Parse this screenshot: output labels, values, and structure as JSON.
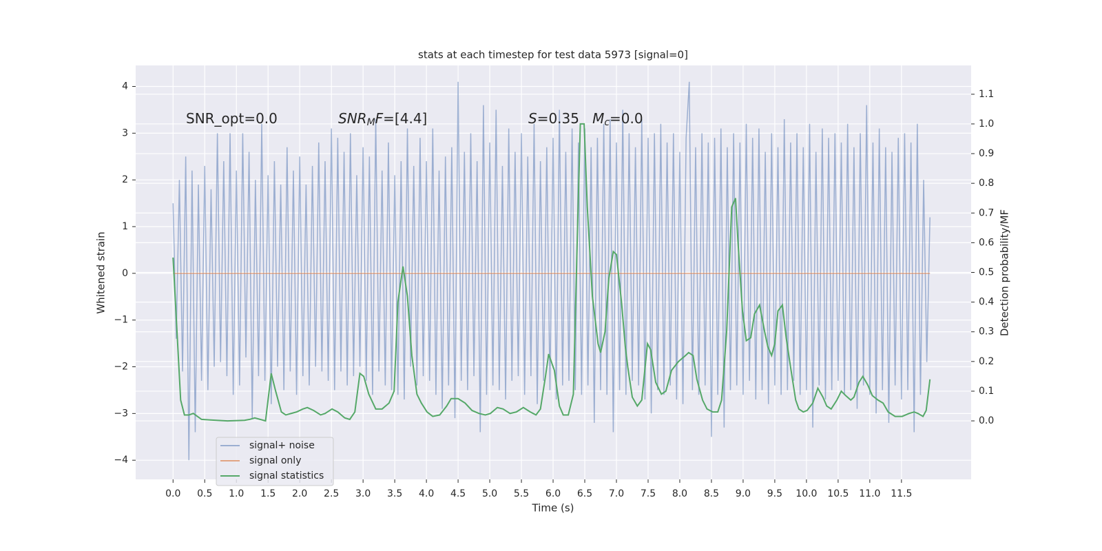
{
  "chart_data": {
    "type": "line",
    "title": "stats at each timestep for test data 5973 [signal=0]",
    "xlabel": "Time (s)",
    "ylabel": "Whitened strain",
    "y2label": "Detection probability/MF",
    "xlim": [
      -0.59,
      12.6
    ],
    "ylim": [
      -4.41,
      4.45
    ],
    "y2lim": [
      -0.197,
      1.197
    ],
    "grid": true,
    "legend": "lower left",
    "xticks": [
      {
        "value": 0,
        "label": "0.0"
      },
      0.5,
      {
        "value": 1,
        "label": "1.0"
      },
      1.5,
      {
        "value": 2,
        "label": "2.0"
      },
      2.5,
      {
        "value": 3,
        "label": "3.0"
      },
      3.5,
      {
        "value": 4,
        "label": "4.0"
      },
      4.5,
      {
        "value": 5,
        "label": "5.0"
      },
      5.5,
      {
        "value": 6,
        "label": "6.0"
      },
      6.5,
      {
        "value": 7,
        "label": "7.0"
      },
      7.5,
      {
        "value": 8,
        "label": "8.0"
      },
      8.5,
      {
        "value": 9,
        "label": "9.0"
      },
      9.5,
      {
        "value": 10,
        "label": "10.0"
      },
      10.5,
      {
        "value": 11,
        "label": "11.0"
      },
      11.5
    ],
    "yticks": [
      {
        "value": -4,
        "label": "−4"
      },
      {
        "value": -3,
        "label": "−3"
      },
      {
        "value": -2,
        "label": "−2"
      },
      {
        "value": -1,
        "label": "−1"
      },
      0,
      1,
      2,
      3,
      4
    ],
    "y2ticks": [
      {
        "value": 0,
        "label": "0.0"
      },
      0.1,
      0.2,
      0.3,
      0.4,
      0.5,
      0.6,
      0.7,
      0.8,
      0.9,
      {
        "value": 1,
        "label": "1.0"
      },
      1.1
    ],
    "annotations": [
      {
        "parts": [
          {
            "text": "SNR_opt=0.0"
          }
        ]
      },
      {
        "parts": [
          {
            "text": "SNR",
            "style": "italic"
          },
          {
            "text": "M",
            "style": "sub"
          },
          {
            "text": "F",
            "style": "italic"
          },
          {
            "text": "=[4.4]"
          }
        ]
      },
      {
        "parts": [
          {
            "text": "S",
            "style": "italic"
          },
          {
            "text": "=0.35   "
          },
          {
            "text": "M",
            "style": "italic"
          },
          {
            "text": "c",
            "style": "sub"
          },
          {
            "text": "=0.0"
          }
        ]
      }
    ],
    "series": [
      {
        "name": "signal+ noise",
        "color": "#4c72b0",
        "opacity": 0.5,
        "x": [
          0,
          0.05,
          0.1,
          0.15,
          0.2,
          0.25,
          0.3,
          0.35,
          0.4,
          0.45,
          0.5,
          0.55,
          0.6,
          0.65,
          0.7,
          0.75,
          0.8,
          0.85,
          0.9,
          0.95,
          1,
          1.05,
          1.1,
          1.15,
          1.2,
          1.25,
          1.3,
          1.35,
          1.4,
          1.45,
          1.5,
          1.55,
          1.6,
          1.65,
          1.7,
          1.75,
          1.8,
          1.85,
          1.9,
          1.95,
          2,
          2.05,
          2.1,
          2.15,
          2.2,
          2.25,
          2.3,
          2.35,
          2.4,
          2.45,
          2.5,
          2.55,
          2.6,
          2.65,
          2.7,
          2.75,
          2.8,
          2.85,
          2.9,
          2.95,
          3,
          3.05,
          3.1,
          3.15,
          3.2,
          3.25,
          3.3,
          3.35,
          3.4,
          3.45,
          3.5,
          3.55,
          3.6,
          3.65,
          3.7,
          3.75,
          3.8,
          3.85,
          3.9,
          3.95,
          4,
          4.05,
          4.1,
          4.15,
          4.2,
          4.25,
          4.3,
          4.35,
          4.4,
          4.45,
          4.5,
          4.55,
          4.6,
          4.65,
          4.7,
          4.75,
          4.8,
          4.85,
          4.9,
          4.95,
          5,
          5.05,
          5.1,
          5.15,
          5.2,
          5.25,
          5.3,
          5.35,
          5.4,
          5.45,
          5.5,
          5.55,
          5.6,
          5.65,
          5.7,
          5.75,
          5.8,
          5.85,
          5.9,
          5.95,
          6,
          6.05,
          6.1,
          6.15,
          6.2,
          6.25,
          6.3,
          6.35,
          6.4,
          6.45,
          6.5,
          6.55,
          6.6,
          6.65,
          6.7,
          6.75,
          6.8,
          6.85,
          6.9,
          6.95,
          7,
          7.05,
          7.1,
          7.15,
          7.2,
          7.25,
          7.3,
          7.35,
          7.4,
          7.45,
          7.5,
          7.55,
          7.6,
          7.65,
          7.7,
          7.75,
          7.8,
          7.85,
          7.9,
          7.95,
          8,
          8.05,
          8.1,
          8.15,
          8.2,
          8.25,
          8.3,
          8.35,
          8.4,
          8.45,
          8.5,
          8.55,
          8.6,
          8.65,
          8.7,
          8.75,
          8.8,
          8.85,
          8.9,
          8.95,
          9,
          9.05,
          9.1,
          9.15,
          9.2,
          9.25,
          9.3,
          9.35,
          9.4,
          9.45,
          9.5,
          9.55,
          9.6,
          9.65,
          9.7,
          9.75,
          9.8,
          9.85,
          9.9,
          9.95,
          10,
          10.05,
          10.1,
          10.15,
          10.2,
          10.25,
          10.3,
          10.35,
          10.4,
          10.45,
          10.5,
          10.55,
          10.6,
          10.65,
          10.7,
          10.75,
          10.8,
          10.85,
          10.9,
          10.95,
          11,
          11.05,
          11.1,
          11.15,
          11.2,
          11.25,
          11.3,
          11.35,
          11.4,
          11.45,
          11.5,
          11.55,
          11.6,
          11.65,
          11.7,
          11.75,
          11.8,
          11.85,
          11.9,
          11.95
        ],
        "values": [
          1.5,
          -1.4,
          2.0,
          -2.1,
          2.5,
          -4.0,
          2.2,
          -3.4,
          1.9,
          -2.3,
          2.3,
          -2.5,
          1.8,
          -2.0,
          3.0,
          -1.9,
          2.4,
          -2.2,
          3.0,
          -2.6,
          2.2,
          -2.4,
          3.0,
          -1.8,
          2.6,
          -3.1,
          2.0,
          -2.2,
          3.2,
          -2.3,
          2.1,
          -2.8,
          2.4,
          -2.0,
          1.9,
          -2.5,
          2.7,
          -2.1,
          2.2,
          -2.6,
          2.5,
          -2.2,
          1.9,
          -2.4,
          2.3,
          -2.0,
          2.8,
          -2.1,
          2.4,
          -2.3,
          3.1,
          -2.5,
          2.9,
          -2.1,
          2.6,
          -2.4,
          3.0,
          -2.2,
          2.1,
          -2.0,
          2.7,
          -2.3,
          2.5,
          -2.6,
          3.3,
          -2.1,
          2.2,
          -2.4,
          2.8,
          -2.5,
          2.1,
          -2.6,
          2.4,
          -2.7,
          3.1,
          -2.0,
          2.3,
          -2.4,
          2.9,
          -2.2,
          2.4,
          -2.3,
          3.1,
          -2.6,
          2.2,
          -2.9,
          2.5,
          -2.4,
          2.7,
          -3.1,
          4.1,
          -2.3,
          2.6,
          -2.5,
          3.0,
          -2.2,
          2.4,
          -3.4,
          3.6,
          -2.6,
          2.8,
          -2.4,
          3.5,
          -2.5,
          2.3,
          -2.7,
          3.1,
          -2.3,
          2.6,
          -2.2,
          3.0,
          -2.6,
          2.5,
          -2.2,
          3.2,
          -2.8,
          2.4,
          -2.3,
          2.7,
          -2.5,
          2.9,
          -2.7,
          3.5,
          -2.4,
          2.6,
          -2.3,
          3.1,
          -2.5,
          2.8,
          -2.6,
          3.1,
          -2.4,
          2.7,
          -3.2,
          2.9,
          -2.5,
          3.2,
          -2.6,
          3.3,
          -3.4,
          2.8,
          -2.5,
          3.5,
          -2.6,
          3.0,
          -2.3,
          2.7,
          -2.4,
          3.3,
          -2.7,
          2.9,
          -3.0,
          3.0,
          -2.5,
          3.2,
          -2.6,
          2.8,
          -2.4,
          3.0,
          -2.7,
          2.6,
          -2.8,
          2.9,
          4.1,
          -2.5,
          2.7,
          -2.6,
          3.0,
          -2.4,
          2.8,
          -3.5,
          2.9,
          -2.6,
          3.1,
          -3.3,
          2.7,
          -2.5,
          3.0,
          -2.4,
          2.8,
          -2.6,
          3.2,
          -2.3,
          2.9,
          -2.7,
          3.1,
          -2.5,
          2.6,
          -2.8,
          3.0,
          -2.4,
          2.7,
          -2.6,
          3.3,
          -2.5,
          2.8,
          -2.3,
          3.0,
          -2.6,
          2.7,
          -2.5,
          3.2,
          -3.3,
          2.6,
          -2.4,
          3.1,
          -2.7,
          2.9,
          -2.5,
          3.0,
          -2.3,
          2.8,
          -2.6,
          3.2,
          -2.5,
          2.7,
          -2.9,
          3.0,
          -2.4,
          3.6,
          -2.6,
          2.8,
          -3.0,
          3.1,
          -2.5,
          2.7,
          -3.2,
          2.6,
          -2.4,
          2.9,
          -2.7,
          3.0,
          -2.5,
          2.8,
          -3.4,
          3.2,
          -2.6,
          2.0,
          -1.9,
          1.2
        ]
      },
      {
        "name": "signal only",
        "color": "#dd8452",
        "opacity": 0.7,
        "x": [
          0,
          11.95
        ],
        "values": [
          0,
          0
        ]
      },
      {
        "name": "signal statistics",
        "color": "#55a868",
        "opacity": 1,
        "axis": "y2",
        "x": [
          0,
          0.05,
          0.12,
          0.18,
          0.25,
          0.32,
          0.45,
          0.59,
          0.86,
          1.13,
          1.21,
          1.29,
          1.46,
          1.55,
          1.62,
          1.71,
          1.78,
          1.95,
          2.05,
          2.12,
          2.22,
          2.33,
          2.4,
          2.51,
          2.6,
          2.71,
          2.79,
          2.87,
          2.95,
          3.01,
          3.09,
          3.2,
          3.3,
          3.41,
          3.49,
          3.55,
          3.63,
          3.7,
          3.77,
          3.85,
          3.92,
          4.01,
          4.1,
          4.21,
          4.32,
          4.39,
          4.5,
          4.61,
          4.72,
          4.83,
          4.93,
          5.01,
          5.12,
          5.21,
          5.32,
          5.42,
          5.53,
          5.64,
          5.73,
          5.8,
          5.88,
          5.93,
          6.02,
          6.1,
          6.16,
          6.24,
          6.32,
          6.38,
          6.43,
          6.49,
          6.54,
          6.62,
          6.71,
          6.75,
          6.82,
          6.88,
          6.95,
          7.0,
          7.08,
          7.14,
          7.18,
          7.25,
          7.33,
          7.4,
          7.49,
          7.54,
          7.62,
          7.71,
          7.78,
          7.87,
          7.98,
          8.09,
          8.14,
          8.21,
          8.27,
          8.36,
          8.43,
          8.52,
          8.6,
          8.66,
          8.74,
          8.82,
          8.88,
          8.92,
          8.99,
          9.05,
          9.12,
          9.18,
          9.26,
          9.34,
          9.39,
          9.45,
          9.5,
          9.55,
          9.62,
          9.68,
          9.75,
          9.83,
          9.88,
          9.95,
          10.01,
          10.1,
          10.18,
          10.26,
          10.32,
          10.39,
          10.48,
          10.55,
          10.62,
          10.7,
          10.75,
          10.83,
          10.89,
          10.97,
          11.04,
          11.13,
          11.21,
          11.29,
          11.4,
          11.51,
          11.62,
          11.7,
          11.76,
          11.84,
          11.89,
          11.95
        ],
        "values": [
          0.55,
          0.35,
          0.07,
          0.02,
          0.02,
          0.025,
          0.005,
          0.003,
          0.0,
          0.002,
          0.005,
          0.01,
          0.0,
          0.16,
          0.1,
          0.03,
          0.02,
          0.03,
          0.04,
          0.045,
          0.035,
          0.02,
          0.025,
          0.04,
          0.03,
          0.01,
          0.005,
          0.03,
          0.16,
          0.15,
          0.09,
          0.04,
          0.04,
          0.06,
          0.1,
          0.4,
          0.52,
          0.42,
          0.22,
          0.09,
          0.06,
          0.03,
          0.015,
          0.02,
          0.05,
          0.075,
          0.075,
          0.06,
          0.035,
          0.025,
          0.02,
          0.025,
          0.045,
          0.04,
          0.025,
          0.03,
          0.045,
          0.03,
          0.02,
          0.04,
          0.15,
          0.225,
          0.17,
          0.05,
          0.02,
          0.02,
          0.09,
          0.6,
          1.0,
          1.0,
          0.72,
          0.42,
          0.26,
          0.23,
          0.3,
          0.48,
          0.57,
          0.56,
          0.4,
          0.25,
          0.18,
          0.08,
          0.05,
          0.07,
          0.26,
          0.24,
          0.13,
          0.09,
          0.1,
          0.17,
          0.2,
          0.22,
          0.23,
          0.22,
          0.14,
          0.07,
          0.04,
          0.03,
          0.03,
          0.07,
          0.3,
          0.72,
          0.75,
          0.6,
          0.37,
          0.27,
          0.28,
          0.36,
          0.39,
          0.3,
          0.25,
          0.22,
          0.26,
          0.37,
          0.39,
          0.28,
          0.18,
          0.07,
          0.04,
          0.03,
          0.035,
          0.06,
          0.11,
          0.08,
          0.05,
          0.04,
          0.07,
          0.1,
          0.085,
          0.07,
          0.08,
          0.13,
          0.15,
          0.12,
          0.085,
          0.07,
          0.06,
          0.03,
          0.015,
          0.015,
          0.025,
          0.03,
          0.025,
          0.015,
          0.035,
          0.14
        ]
      }
    ]
  }
}
